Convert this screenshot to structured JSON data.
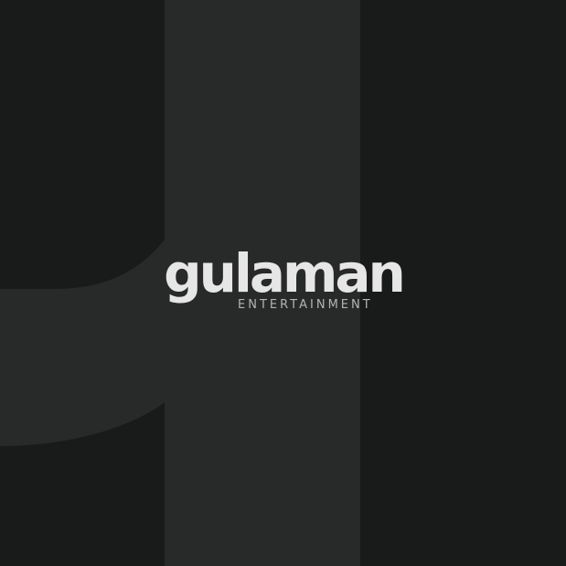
{
  "brand": {
    "wordmark": "gulaman",
    "tagline": "ENTERTAINMENT"
  },
  "colors": {
    "background": "#191a1a",
    "mark_fill": "#282929",
    "wordmark": "#e6e6e6",
    "tagline": "#b4b4b4"
  },
  "background_mark": {
    "icon": "large-g-letterform-icon"
  }
}
